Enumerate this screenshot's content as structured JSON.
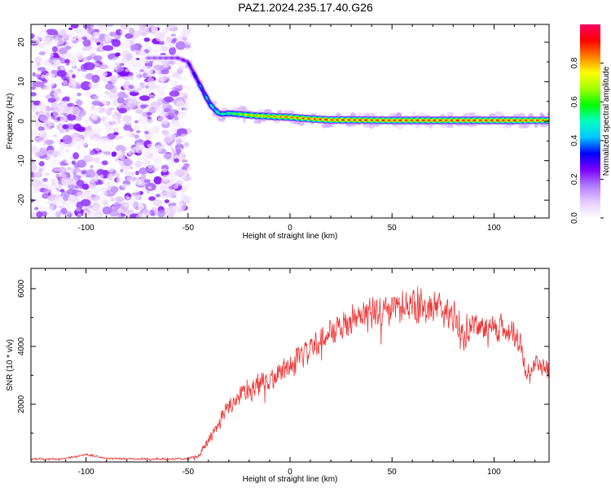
{
  "figure": {
    "title": "PAZ1.2024.235.17.40.G26"
  },
  "chart_data": [
    {
      "type": "heatmap",
      "panel": "spectrogram",
      "xlabel": "Height of straight line (km)",
      "ylabel": "Frequency (Hz)",
      "xlim": [
        -127,
        127
      ],
      "ylim": [
        -24.5,
        24.5
      ],
      "x_ticks": [
        -100,
        -50,
        0,
        50,
        100
      ],
      "y_ticks": [
        -20,
        -10,
        0,
        10,
        20
      ],
      "grid": false,
      "colorbar": {
        "label": "Normalized spectral amplitude",
        "range": [
          0,
          1
        ],
        "ticks": [
          0.0,
          0.2,
          0.4,
          0.6,
          0.8
        ],
        "tick_labels": [
          "0.0",
          "0.2",
          "0.4",
          "0.6",
          "0.8"
        ],
        "colors": [
          "#ffffff",
          "#e6ccff",
          "#b07aff",
          "#7a00ff",
          "#0000ff",
          "#00c8ff",
          "#00ffc0",
          "#00ff00",
          "#a0ff00",
          "#ffff00",
          "#ff8000",
          "#ff0000",
          "#ff0060"
        ]
      },
      "dominant_frequency_track": {
        "x": [
          -70,
          -60,
          -55,
          -50,
          -48,
          -45,
          -42,
          -40,
          -38,
          -35,
          -33,
          -30,
          -25,
          -20,
          -10,
          0,
          10,
          20,
          30,
          50,
          70,
          90,
          110,
          127
        ],
        "y": [
          16,
          16,
          16,
          15,
          13,
          10,
          7,
          5,
          3.5,
          2,
          1.8,
          2,
          1.8,
          1.5,
          1.2,
          1.0,
          0.6,
          0.3,
          0.3,
          0.2,
          0.2,
          0.2,
          0.2,
          0.2
        ],
        "amplitude": [
          0.15,
          0.18,
          0.2,
          0.25,
          0.3,
          0.35,
          0.4,
          0.45,
          0.5,
          0.55,
          0.55,
          0.6,
          0.7,
          0.8,
          0.85,
          0.9,
          0.92,
          0.95,
          0.95,
          0.95,
          0.95,
          0.95,
          0.95,
          0.9
        ]
      },
      "noise_region": {
        "x_range": [
          -127,
          -50
        ],
        "y_range": [
          -24.5,
          24.5
        ],
        "amplitude_range": [
          0.02,
          0.25
        ]
      },
      "colors": {
        "low": "#b07aff",
        "track_edge": "#00ffc0",
        "track_core": "#ff2020"
      }
    },
    {
      "type": "line",
      "panel": "snr",
      "xlabel": "Height of straight line (km)",
      "ylabel": "SNR (10 * v/v)",
      "xlim": [
        -127,
        127
      ],
      "ylim": [
        0,
        6700
      ],
      "x_ticks": [
        -100,
        -50,
        0,
        50,
        100
      ],
      "y_ticks": [
        2000,
        4000,
        6000
      ],
      "grid": false,
      "series": [
        {
          "color": "#ee3333",
          "envelope": {
            "x": [
              -127,
              -110,
              -100,
              -90,
              -70,
              -50,
              -45,
              -40,
              -35,
              -30,
              -25,
              -20,
              -10,
              0,
              10,
              20,
              30,
              40,
              50,
              60,
              70,
              80,
              85,
              90,
              100,
              110,
              113,
              115,
              118,
              120,
              127
            ],
            "y": [
              100,
              120,
              260,
              120,
              100,
              110,
              200,
              700,
              1300,
              1900,
              2300,
              2500,
              2800,
              3300,
              3900,
              4500,
              4900,
              5100,
              5300,
              5400,
              5400,
              5100,
              4400,
              4800,
              4700,
              4500,
              4200,
              3300,
              2900,
              3400,
              3200
            ]
          },
          "noise_amplitude": {
            "x": [
              -127,
              -50,
              -45,
              -40,
              -30,
              -20,
              0,
              20,
              40,
              60,
              80,
              100,
              110,
              115,
              127
            ],
            "y": [
              40,
              40,
              100,
              250,
              400,
              500,
              500,
              550,
              650,
              700,
              650,
              600,
              600,
              400,
              400
            ]
          }
        }
      ]
    }
  ]
}
